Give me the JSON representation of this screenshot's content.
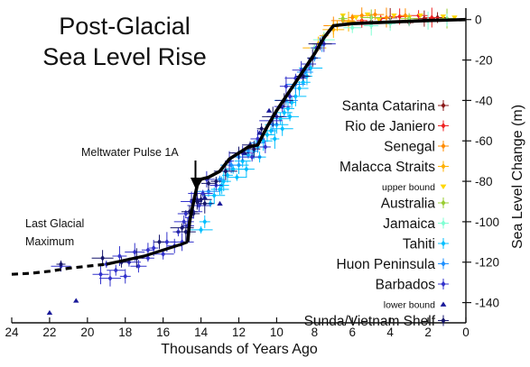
{
  "chart_data": {
    "type": "scatter",
    "title": "Post-Glacial",
    "subtitle": "Sea Level Rise",
    "xlabel": "Thousands of Years Ago",
    "ylabel": "Sea Level Change (m)",
    "x_reversed": true,
    "xlim": [
      24,
      0
    ],
    "ylim": [
      -150,
      3
    ],
    "x_ticks": [
      24,
      22,
      20,
      18,
      16,
      14,
      12,
      10,
      8,
      6,
      4,
      2,
      0
    ],
    "y_ticks": [
      0,
      -20,
      -40,
      -60,
      -80,
      -100,
      -120,
      -140
    ],
    "grid": false,
    "legend_position": "right",
    "annotations": [
      {
        "label": "Meltwater Pulse 1A",
        "x": 14.6,
        "y": -90
      },
      {
        "label": "Last Glacial",
        "x": 21.8,
        "y": -124
      },
      {
        "label": "Maximum",
        "x": 21.8,
        "y": -124
      }
    ],
    "colors": {
      "axis": "#111111",
      "curve": "#000000"
    },
    "curve": {
      "name": "",
      "solid": [
        [
          14.7,
          -110
        ],
        [
          14.6,
          -100
        ],
        [
          14.5,
          -95
        ],
        [
          14.2,
          -82
        ],
        [
          14.0,
          -79
        ],
        [
          13.6,
          -78
        ],
        [
          13.0,
          -75
        ],
        [
          12.5,
          -69
        ],
        [
          11.5,
          -63
        ],
        [
          11.0,
          -62
        ],
        [
          10.5,
          -53
        ],
        [
          10.0,
          -45
        ],
        [
          9.5,
          -38
        ],
        [
          9.0,
          -31
        ],
        [
          8.5,
          -24
        ],
        [
          8.0,
          -17
        ],
        [
          7.5,
          -9
        ],
        [
          7.0,
          -3
        ],
        [
          6.0,
          -2
        ],
        [
          4.0,
          -1.2
        ],
        [
          2.0,
          -0.5
        ],
        [
          0.0,
          0
        ]
      ],
      "lower": [
        [
          19.0,
          -121
        ],
        [
          18.0,
          -119
        ],
        [
          17.0,
          -117
        ],
        [
          16.0,
          -114
        ],
        [
          15.0,
          -111
        ],
        [
          14.7,
          -110
        ]
      ],
      "dashed": [
        [
          24.0,
          -126
        ],
        [
          23.0,
          -125.5
        ],
        [
          22.0,
          -124.5
        ],
        [
          21.0,
          -123
        ],
        [
          20.0,
          -122
        ],
        [
          19.0,
          -121
        ]
      ]
    },
    "series": [
      {
        "name": "Santa Catarina",
        "color": "#8b1a1a",
        "marker": "diamond",
        "error": "both",
        "points": [
          [
            3.0,
            -1.5
          ],
          [
            2.2,
            0.5
          ],
          [
            1.5,
            1.0
          ],
          [
            4.0,
            0.8
          ],
          [
            5.0,
            -1.0
          ]
        ]
      },
      {
        "name": "Rio de Janiero",
        "color": "#ee2222",
        "marker": "diamond",
        "error": "both",
        "points": [
          [
            4.5,
            0.5
          ],
          [
            3.5,
            1.5
          ],
          [
            2.5,
            2.0
          ],
          [
            1.8,
            1.0
          ],
          [
            5.5,
            -0.5
          ]
        ]
      },
      {
        "name": "Senegal",
        "color": "#ff8c00",
        "marker": "diamond",
        "error": "both",
        "points": [
          [
            6.0,
            1.0
          ],
          [
            5.5,
            2.0
          ],
          [
            4.8,
            2.5
          ],
          [
            4.2,
            1.0
          ],
          [
            3.2,
            2.0
          ],
          [
            6.5,
            -0.5
          ],
          [
            7.0,
            -3.0
          ]
        ]
      },
      {
        "name": "Malacca Straits",
        "color": "#ffb000",
        "marker": "diamond",
        "error": "both",
        "points": [
          [
            7.5,
            -8.0
          ],
          [
            7.0,
            -5.0
          ],
          [
            6.8,
            -3.0
          ],
          [
            6.2,
            -1.0
          ],
          [
            7.8,
            -12.0
          ],
          [
            8.0,
            -14.0
          ]
        ]
      },
      {
        "name": "upper bound",
        "color": "#ffd700",
        "marker": "tri-down",
        "error": "none",
        "legend_small": true,
        "points": [
          [
            6.5,
            2.0
          ],
          [
            5.8,
            1.0
          ],
          [
            5.2,
            2.5
          ],
          [
            4.6,
            0.0
          ],
          [
            3.8,
            2.0
          ],
          [
            3.0,
            1.0
          ],
          [
            2.4,
            2.0
          ],
          [
            1.2,
            1.5
          ],
          [
            0.6,
            1.0
          ]
        ]
      },
      {
        "name": "Australia",
        "color": "#9acd32",
        "marker": "diamond",
        "error": "both",
        "points": [
          [
            6.5,
            0.5
          ],
          [
            5.0,
            1.0
          ],
          [
            3.0,
            0.5
          ],
          [
            1.0,
            0.5
          ]
        ]
      },
      {
        "name": "Jamaica",
        "color": "#7fffd4",
        "marker": "diamond",
        "error": "both",
        "points": [
          [
            8.0,
            -14.0
          ],
          [
            7.5,
            -10.0
          ],
          [
            6.0,
            -4.0
          ],
          [
            5.0,
            -3.0
          ],
          [
            4.0,
            -2.0
          ],
          [
            3.0,
            -1.0
          ],
          [
            2.0,
            -0.5
          ],
          [
            1.0,
            -0.2
          ]
        ]
      },
      {
        "name": "Tahiti",
        "color": "#00bfff",
        "marker": "diamond",
        "error": "both",
        "points": [
          [
            13.5,
            -91
          ],
          [
            13.3,
            -87
          ],
          [
            13.0,
            -84
          ],
          [
            12.8,
            -80
          ],
          [
            12.6,
            -77
          ],
          [
            12.3,
            -74
          ],
          [
            12.0,
            -72
          ],
          [
            11.8,
            -70
          ],
          [
            11.5,
            -67
          ],
          [
            11.2,
            -65
          ],
          [
            11.0,
            -63
          ],
          [
            10.7,
            -60
          ],
          [
            10.5,
            -57
          ],
          [
            10.3,
            -55
          ],
          [
            10.0,
            -52
          ],
          [
            9.8,
            -49
          ],
          [
            9.6,
            -46
          ],
          [
            9.4,
            -44
          ],
          [
            9.2,
            -41
          ],
          [
            9.0,
            -38
          ],
          [
            8.8,
            -34
          ],
          [
            8.6,
            -31
          ],
          [
            8.4,
            -28
          ],
          [
            8.2,
            -24
          ],
          [
            12.1,
            -78
          ],
          [
            11.6,
            -74
          ],
          [
            10.9,
            -68
          ],
          [
            10.1,
            -59
          ],
          [
            9.7,
            -54
          ],
          [
            9.3,
            -48
          ],
          [
            12.9,
            -82
          ],
          [
            13.8,
            -100
          ],
          [
            14.0,
            -104
          ]
        ]
      },
      {
        "name": "Huon Peninsula",
        "color": "#1e90ff",
        "marker": "diamond",
        "error": "both",
        "points": [
          [
            13.0,
            -79
          ],
          [
            12.4,
            -72
          ],
          [
            11.5,
            -65
          ],
          [
            11.0,
            -61
          ],
          [
            10.2,
            -52
          ],
          [
            9.5,
            -40
          ],
          [
            9.0,
            -32
          ],
          [
            8.5,
            -26
          ],
          [
            8.0,
            -19
          ],
          [
            7.6,
            -12
          ],
          [
            13.6,
            -85
          ],
          [
            12.0,
            -68
          ]
        ]
      },
      {
        "name": "Barbados",
        "color": "#3333cc",
        "marker": "diamond",
        "error": "both",
        "points": [
          [
            19.0,
            -121
          ],
          [
            18.8,
            -128
          ],
          [
            18.5,
            -124
          ],
          [
            18.3,
            -117
          ],
          [
            18.0,
            -127
          ],
          [
            17.8,
            -120
          ],
          [
            17.5,
            -115
          ],
          [
            17.3,
            -122
          ],
          [
            16.8,
            -118
          ],
          [
            16.5,
            -113
          ],
          [
            16.0,
            -116
          ],
          [
            15.8,
            -110
          ],
          [
            15.4,
            -112
          ],
          [
            15.2,
            -105
          ],
          [
            15.0,
            -110
          ],
          [
            14.9,
            -100
          ],
          [
            14.8,
            -96
          ],
          [
            14.7,
            -102
          ],
          [
            14.6,
            -98
          ],
          [
            14.5,
            -90
          ],
          [
            14.4,
            -95
          ],
          [
            14.3,
            -86
          ],
          [
            14.2,
            -89
          ],
          [
            14.1,
            -92
          ],
          [
            13.9,
            -86
          ],
          [
            13.7,
            -79
          ],
          [
            13.2,
            -82
          ],
          [
            12.5,
            -70
          ],
          [
            11.8,
            -66
          ],
          [
            11.3,
            -68
          ],
          [
            11.0,
            -59
          ],
          [
            10.6,
            -63
          ],
          [
            10.3,
            -50
          ],
          [
            10.0,
            -48
          ],
          [
            9.7,
            -43
          ],
          [
            9.5,
            -33
          ],
          [
            9.3,
            -38
          ],
          [
            9.0,
            -29
          ],
          [
            8.7,
            -25
          ],
          [
            8.3,
            -22
          ],
          [
            7.9,
            -14
          ],
          [
            7.5,
            -12
          ],
          [
            21.4,
            -122
          ],
          [
            19.3,
            -126
          ],
          [
            16.8,
            -114
          ]
        ]
      },
      {
        "name": "lower bound",
        "color": "#1a1a9a",
        "marker": "tri-up",
        "error": "none",
        "legend_small": true,
        "points": [
          [
            22.0,
            -145
          ],
          [
            20.6,
            -139
          ],
          [
            13.8,
            -88
          ],
          [
            13.0,
            -91
          ],
          [
            11.7,
            -66
          ],
          [
            10.9,
            -56
          ],
          [
            10.4,
            -45
          ],
          [
            9.8,
            -43
          ]
        ]
      },
      {
        "name": "Sunda/Vietnam Shelf",
        "color": "#15156b",
        "marker": "diamond",
        "error": "both",
        "points": [
          [
            21.4,
            -121
          ],
          [
            19.2,
            -118
          ],
          [
            18.2,
            -120
          ],
          [
            17.4,
            -118
          ],
          [
            16.2,
            -110
          ],
          [
            15.0,
            -103
          ],
          [
            14.8,
            -105
          ],
          [
            14.6,
            -95
          ],
          [
            14.4,
            -96
          ],
          [
            14.2,
            -90
          ],
          [
            14.0,
            -89
          ],
          [
            13.8,
            -91
          ],
          [
            13.6,
            -81
          ],
          [
            13.2,
            -80
          ],
          [
            12.7,
            -75
          ],
          [
            12.0,
            -66
          ],
          [
            11.4,
            -62
          ],
          [
            11.2,
            -64
          ],
          [
            10.8,
            -54
          ],
          [
            10.2,
            -48
          ],
          [
            9.6,
            -40
          ],
          [
            8.6,
            -28
          ],
          [
            8.1,
            -19
          ],
          [
            7.7,
            -12
          ]
        ]
      }
    ]
  }
}
